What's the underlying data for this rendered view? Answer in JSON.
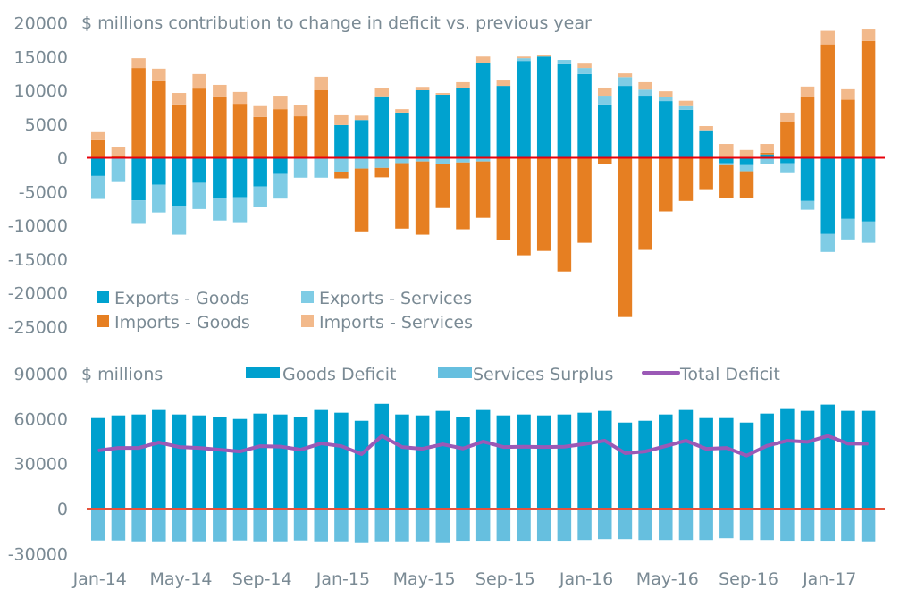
{
  "chart_data": [
    {
      "type": "bar",
      "stacked": true,
      "title": "$ millions contribution to change in deficit vs. previous year",
      "xlabel": "",
      "ylabel": "",
      "ylim": [
        -25000,
        20000
      ],
      "yticks": [
        20000,
        15000,
        10000,
        5000,
        0,
        -5000,
        -10000,
        -15000,
        -20000,
        -25000
      ],
      "grid": false,
      "legend_position": "bottom-left",
      "categories": [
        "Jan-14",
        "Feb-14",
        "Mar-14",
        "Apr-14",
        "May-14",
        "Jun-14",
        "Jul-14",
        "Aug-14",
        "Sep-14",
        "Oct-14",
        "Nov-14",
        "Dec-14",
        "Jan-15",
        "Feb-15",
        "Mar-15",
        "Apr-15",
        "May-15",
        "Jun-15",
        "Jul-15",
        "Aug-15",
        "Sep-15",
        "Oct-15",
        "Nov-15",
        "Dec-15",
        "Jan-16",
        "Feb-16",
        "Mar-16",
        "Apr-16",
        "May-16",
        "Jun-16",
        "Jul-16",
        "Aug-16",
        "Sep-16",
        "Oct-16",
        "Nov-16",
        "Dec-16",
        "Jan-17",
        "Feb-17",
        "Mar-17"
      ],
      "series": [
        {
          "name": "Exports - Goods",
          "color": "#00A2CF",
          "values": [
            -2700,
            0,
            -6300,
            -4000,
            -7200,
            -3700,
            -6000,
            -5850,
            -4250,
            -2400,
            0,
            0,
            4850,
            5600,
            9100,
            6700,
            10000,
            9350,
            10400,
            14100,
            10650,
            14350,
            15000,
            13850,
            12400,
            7900,
            10650,
            9200,
            8400,
            7100,
            3950,
            -800,
            -1100,
            500,
            -800,
            -6400,
            -11300,
            -9050,
            -9450
          ]
        },
        {
          "name": "Exports - Services",
          "color": "#7FCCE5",
          "values": [
            -3400,
            -3600,
            -3500,
            -4100,
            -4200,
            -3900,
            -3300,
            -3700,
            -3100,
            -3650,
            -2950,
            -2950,
            -2050,
            -1600,
            -1500,
            -800,
            -550,
            -950,
            -700,
            -550,
            0,
            400,
            0,
            650,
            900,
            1300,
            1300,
            900,
            650,
            550,
            150,
            -300,
            -900,
            -950,
            -1350,
            -1300,
            -2650,
            -3050,
            -3150
          ]
        },
        {
          "name": "Imports - Goods",
          "color": "#E67F22",
          "values": [
            2600,
            200,
            13300,
            11350,
            7900,
            10250,
            9100,
            8000,
            6050,
            7200,
            6150,
            10000,
            -1000,
            -9300,
            -1400,
            -9700,
            -10850,
            -6500,
            -9900,
            -8350,
            -12200,
            -14450,
            -13800,
            -16850,
            -12600,
            -950,
            -23600,
            -13650,
            -7950,
            -6400,
            -4650,
            -4800,
            -3900,
            250,
            5400,
            9000,
            16800,
            8600,
            17300
          ]
        },
        {
          "name": "Imports - Services",
          "color": "#F2B98B",
          "values": [
            1200,
            1450,
            1450,
            1850,
            1700,
            2150,
            1700,
            1750,
            1600,
            2000,
            1600,
            2000,
            1450,
            650,
            1200,
            500,
            500,
            250,
            800,
            900,
            800,
            250,
            250,
            0,
            650,
            1200,
            550,
            1100,
            800,
            800,
            600,
            2050,
            1150,
            1300,
            1300,
            1550,
            2000,
            1550,
            1700
          ]
        }
      ]
    },
    {
      "type": "bar",
      "stacked": false,
      "title": "$ millions",
      "xlabel": "",
      "ylabel": "",
      "ylim": [
        -30000,
        90000
      ],
      "yticks": [
        90000,
        60000,
        30000,
        0,
        -30000
      ],
      "grid": false,
      "legend_position": "top",
      "categories": [
        "Jan-14",
        "Feb-14",
        "Mar-14",
        "Apr-14",
        "May-14",
        "Jun-14",
        "Jul-14",
        "Aug-14",
        "Sep-14",
        "Oct-14",
        "Nov-14",
        "Dec-14",
        "Jan-15",
        "Feb-15",
        "Mar-15",
        "Apr-15",
        "May-15",
        "Jun-15",
        "Jul-15",
        "Aug-15",
        "Sep-15",
        "Oct-15",
        "Nov-15",
        "Dec-15",
        "Jan-16",
        "Feb-16",
        "Mar-16",
        "Apr-16",
        "May-16",
        "Jun-16",
        "Jul-16",
        "Aug-16",
        "Sep-16",
        "Oct-16",
        "Nov-16",
        "Dec-16",
        "Jan-17",
        "Feb-17",
        "Mar-17"
      ],
      "xtick_labels": [
        "Jan-14",
        "May-14",
        "Sep-14",
        "Jan-15",
        "May-15",
        "Sep-15",
        "Jan-16",
        "May-16",
        "Sep-16",
        "Jan-17"
      ],
      "series": [
        {
          "name": "Goods Deficit",
          "type": "bar",
          "color": "#00A0CE",
          "values": [
            60400,
            62200,
            62800,
            65800,
            62800,
            62200,
            61000,
            59800,
            63400,
            62800,
            61000,
            65800,
            64000,
            58600,
            69900,
            62800,
            62200,
            65200,
            61000,
            65800,
            62200,
            62800,
            62200,
            62800,
            64000,
            65200,
            57400,
            58600,
            62800,
            65800,
            60400,
            60400,
            57400,
            63400,
            66400,
            65200,
            69400,
            65200,
            65200
          ]
        },
        {
          "name": "Services Surplus",
          "type": "bar",
          "color": "#66BFDF",
          "values": [
            -21300,
            -21300,
            -21900,
            -21900,
            -21900,
            -21900,
            -21900,
            -21300,
            -21900,
            -21900,
            -21300,
            -21900,
            -21900,
            -22500,
            -21900,
            -21900,
            -21900,
            -22500,
            -21500,
            -21500,
            -21500,
            -21500,
            -21500,
            -21500,
            -21000,
            -20400,
            -20400,
            -21000,
            -21000,
            -21000,
            -21000,
            -19800,
            -21000,
            -21000,
            -21500,
            -21500,
            -21500,
            -21500,
            -21900
          ]
        },
        {
          "name": "Total Deficit",
          "type": "line",
          "color": "#9B59B6",
          "values": [
            38800,
            40500,
            40500,
            44100,
            41100,
            40500,
            39300,
            38100,
            41700,
            41400,
            39300,
            43500,
            41700,
            36400,
            48500,
            41100,
            39900,
            42900,
            40100,
            44700,
            41100,
            41300,
            41100,
            41300,
            43100,
            45300,
            37000,
            38100,
            41700,
            45300,
            39900,
            40500,
            35400,
            41900,
            45300,
            44500,
            48500,
            43300,
            43300
          ]
        }
      ]
    }
  ],
  "colors": {
    "axis_text": "#7a8a94",
    "zero_line_top": "#E8000B",
    "zero_line_bottom": "#E5533D"
  }
}
